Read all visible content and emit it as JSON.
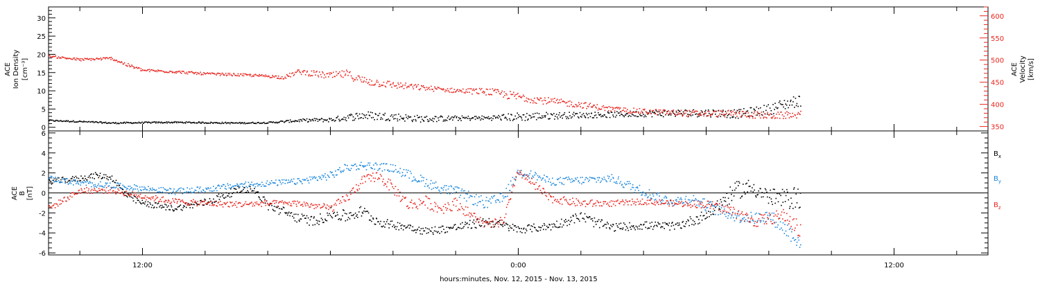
{
  "chart_data": [
    {
      "type": "scatter",
      "panel": "ion-density-velocity",
      "title": "",
      "xlabel": "hours:minutes, Nov. 12, 2015 - Nov. 13, 2015",
      "x_unit": "hours relative to Nov. 13, 2015 00:00",
      "xlim": [
        -15.0,
        15.0
      ],
      "x_ticks": [
        {
          "x": -12,
          "label": "12:00"
        },
        {
          "x": 0,
          "label": "0:00"
        },
        {
          "x": 12,
          "label": "12:00"
        }
      ],
      "ylabel": [
        "ACE",
        "Ion Density",
        "[cm⁻³]"
      ],
      "ylim": [
        -1,
        33
      ],
      "y_ticks": [
        0,
        5,
        10,
        15,
        20,
        25,
        30
      ],
      "y2label": [
        "ACE",
        "Velocity",
        "[km/s]"
      ],
      "y2lim": [
        340,
        620
      ],
      "y2_ticks": [
        350,
        400,
        450,
        500,
        550,
        600
      ],
      "series": [
        {
          "axis": "left",
          "color": "#000000",
          "x": [
            -15.0,
            -14.0,
            -13.0,
            -12.0,
            -11.0,
            -10.0,
            -9.0,
            -8.0,
            -7.5,
            -7.0,
            -6.0,
            -5.0,
            -4.0,
            -3.0,
            -2.0,
            -1.0,
            0.0,
            1.0,
            2.0,
            3.0,
            4.0,
            5.0,
            6.0,
            7.0,
            8.0,
            8.5,
            9.0
          ],
          "y": [
            2.0,
            1.7,
            1.3,
            1.4,
            1.5,
            1.4,
            1.3,
            1.4,
            1.7,
            2.0,
            2.2,
            3.4,
            3.0,
            2.4,
            2.6,
            2.7,
            3.0,
            3.3,
            3.5,
            3.6,
            3.9,
            4.0,
            4.1,
            3.8,
            5.0,
            6.5,
            7.5
          ],
          "spread": [
            0.2,
            0.2,
            0.2,
            0.2,
            0.2,
            0.2,
            0.2,
            0.2,
            0.3,
            0.4,
            0.6,
            1.2,
            1.1,
            0.9,
            0.7,
            0.6,
            1.2,
            1.0,
            0.8,
            0.8,
            0.9,
            1.0,
            1.1,
            1.2,
            1.5,
            1.6,
            1.6
          ]
        },
        {
          "axis": "right",
          "color": "#e8241d",
          "x": [
            -15.0,
            -14.0,
            -13.0,
            -12.5,
            -12.0,
            -11.0,
            -10.0,
            -9.0,
            -8.0,
            -7.5,
            -7.0,
            -6.0,
            -5.5,
            -5.0,
            -4.0,
            -3.0,
            -2.0,
            -1.0,
            0.0,
            1.0,
            2.0,
            3.0,
            4.0,
            5.0,
            6.0,
            7.0,
            8.0,
            9.0
          ],
          "y": [
            510,
            502,
            505,
            490,
            478,
            475,
            470,
            468,
            465,
            462,
            475,
            465,
            470,
            455,
            445,
            438,
            432,
            430,
            418,
            408,
            400,
            390,
            385,
            382,
            380,
            380,
            375,
            378
          ],
          "spread": [
            2,
            3,
            3,
            4,
            3,
            3,
            3,
            3,
            3,
            4,
            6,
            8,
            9,
            10,
            8,
            6,
            5,
            8,
            10,
            8,
            7,
            6,
            6,
            7,
            7,
            8,
            8,
            8
          ]
        }
      ]
    },
    {
      "type": "scatter",
      "panel": "magnetic-field",
      "title": "",
      "xlabel": "hours:minutes, Nov. 12, 2015 - Nov. 13, 2015",
      "xlim": [
        -15.0,
        15.0
      ],
      "x_ticks": [
        {
          "x": -12,
          "label": "12:00"
        },
        {
          "x": 0,
          "label": "0:00"
        },
        {
          "x": 12,
          "label": "12:00"
        }
      ],
      "ylabel": [
        "ACE",
        "B",
        "[nT]"
      ],
      "ylim": [
        -6.2,
        6.2
      ],
      "y_ticks": [
        -6,
        -4,
        -2,
        0,
        2,
        4,
        6
      ],
      "zero_line": true,
      "legend": [
        {
          "label": "B",
          "sub": "x",
          "color": "#000000"
        },
        {
          "label": "B",
          "sub": "y",
          "color": "#1a87dc"
        },
        {
          "label": "B",
          "sub": "z",
          "color": "#e8241d"
        }
      ],
      "legend_position": "right",
      "series": [
        {
          "name": "Bx",
          "color": "#000000",
          "x": [
            -15.0,
            -14.0,
            -13.5,
            -13.0,
            -12.5,
            -12.0,
            -11.0,
            -10.0,
            -9.0,
            -8.5,
            -8.0,
            -7.0,
            -6.5,
            -6.0,
            -5.5,
            -5.0,
            -4.5,
            -4.0,
            -3.5,
            -3.0,
            -2.0,
            -1.0,
            0.0,
            1.0,
            2.0,
            2.5,
            3.0,
            4.0,
            5.0,
            6.0,
            6.5,
            7.0,
            7.5,
            8.0,
            8.5,
            9.0
          ],
          "y": [
            1.2,
            1.5,
            1.8,
            1.6,
            -0.3,
            -1.0,
            -1.5,
            -0.9,
            0.3,
            0.5,
            -1.2,
            -2.5,
            -2.8,
            -2.0,
            -2.3,
            -1.8,
            -2.8,
            -3.2,
            -3.3,
            -3.8,
            -3.4,
            -2.8,
            -3.6,
            -3.3,
            -2.3,
            -3.0,
            -3.4,
            -3.2,
            -3.3,
            -2.2,
            -0.8,
            0.4,
            0.6,
            -0.4,
            -0.6,
            -0.3
          ],
          "spread": [
            0.3,
            0.3,
            0.3,
            0.3,
            0.4,
            0.3,
            0.3,
            0.4,
            0.4,
            0.3,
            0.5,
            0.5,
            0.5,
            0.6,
            0.6,
            0.6,
            0.5,
            0.4,
            0.4,
            0.4,
            0.4,
            0.5,
            0.4,
            0.4,
            0.5,
            0.5,
            0.4,
            0.4,
            0.4,
            0.6,
            0.8,
            0.9,
            0.9,
            0.9,
            1.0,
            1.2
          ]
        },
        {
          "name": "By",
          "color": "#1a87dc",
          "x": [
            -15.0,
            -14.0,
            -13.0,
            -12.0,
            -11.0,
            -10.0,
            -9.0,
            -8.0,
            -7.0,
            -6.0,
            -5.5,
            -5.0,
            -4.5,
            -4.0,
            -3.5,
            -3.0,
            -2.5,
            -2.0,
            -1.5,
            -1.0,
            -0.5,
            0.0,
            0.5,
            1.0,
            2.0,
            3.0,
            3.5,
            4.0,
            4.5,
            5.0,
            5.5,
            6.0,
            6.5,
            7.0,
            7.5,
            8.0,
            8.5,
            9.0
          ],
          "y": [
            1.5,
            1.0,
            0.8,
            0.5,
            0.2,
            0.4,
            0.8,
            1.0,
            1.2,
            1.8,
            2.6,
            2.8,
            2.7,
            2.5,
            1.8,
            1.2,
            0.5,
            0.2,
            -0.5,
            -1.0,
            -0.5,
            2.2,
            1.8,
            1.2,
            1.3,
            1.5,
            0.8,
            0.2,
            -0.5,
            -0.8,
            -0.5,
            -1.2,
            -1.8,
            -2.3,
            -2.5,
            -2.2,
            -3.5,
            -4.8
          ],
          "spread": [
            0.3,
            0.3,
            0.3,
            0.3,
            0.3,
            0.3,
            0.3,
            0.3,
            0.3,
            0.4,
            0.4,
            0.4,
            0.4,
            0.4,
            0.5,
            0.5,
            0.5,
            0.5,
            0.6,
            0.6,
            0.6,
            0.4,
            0.4,
            0.4,
            0.4,
            0.4,
            0.5,
            0.5,
            0.5,
            0.5,
            0.5,
            0.6,
            0.6,
            0.6,
            0.6,
            0.6,
            0.8,
            0.9
          ]
        },
        {
          "name": "Bz",
          "color": "#e8241d",
          "x": [
            -15.0,
            -14.0,
            -13.0,
            -12.0,
            -11.0,
            -10.0,
            -9.0,
            -8.0,
            -7.0,
            -6.0,
            -5.5,
            -5.0,
            -4.5,
            -4.0,
            -3.5,
            -3.0,
            -2.5,
            -2.0,
            -1.5,
            -1.0,
            -0.5,
            0.0,
            0.5,
            1.0,
            2.0,
            3.0,
            4.0,
            5.0,
            6.0,
            6.5,
            7.0,
            7.5,
            8.0,
            8.5,
            9.0
          ],
          "y": [
            -1.5,
            0.3,
            0.3,
            -0.3,
            -0.8,
            -1.0,
            -1.1,
            -1.0,
            -1.0,
            -1.5,
            -0.5,
            1.2,
            1.8,
            0.5,
            -1.2,
            -0.8,
            -1.5,
            -1.0,
            -2.2,
            -3.2,
            -2.8,
            2.2,
            0.8,
            -0.5,
            -1.0,
            -1.0,
            -0.8,
            -1.0,
            -1.1,
            -1.5,
            -2.0,
            -2.8,
            -2.5,
            -2.2,
            -3.8
          ],
          "spread": [
            0.3,
            0.3,
            0.3,
            0.3,
            0.3,
            0.3,
            0.3,
            0.3,
            0.3,
            0.4,
            0.5,
            0.5,
            0.5,
            0.6,
            0.6,
            0.6,
            0.6,
            0.6,
            0.5,
            0.4,
            0.5,
            0.4,
            0.5,
            0.4,
            0.4,
            0.3,
            0.3,
            0.3,
            0.4,
            0.5,
            0.6,
            0.6,
            0.6,
            0.7,
            0.9
          ]
        }
      ]
    }
  ]
}
